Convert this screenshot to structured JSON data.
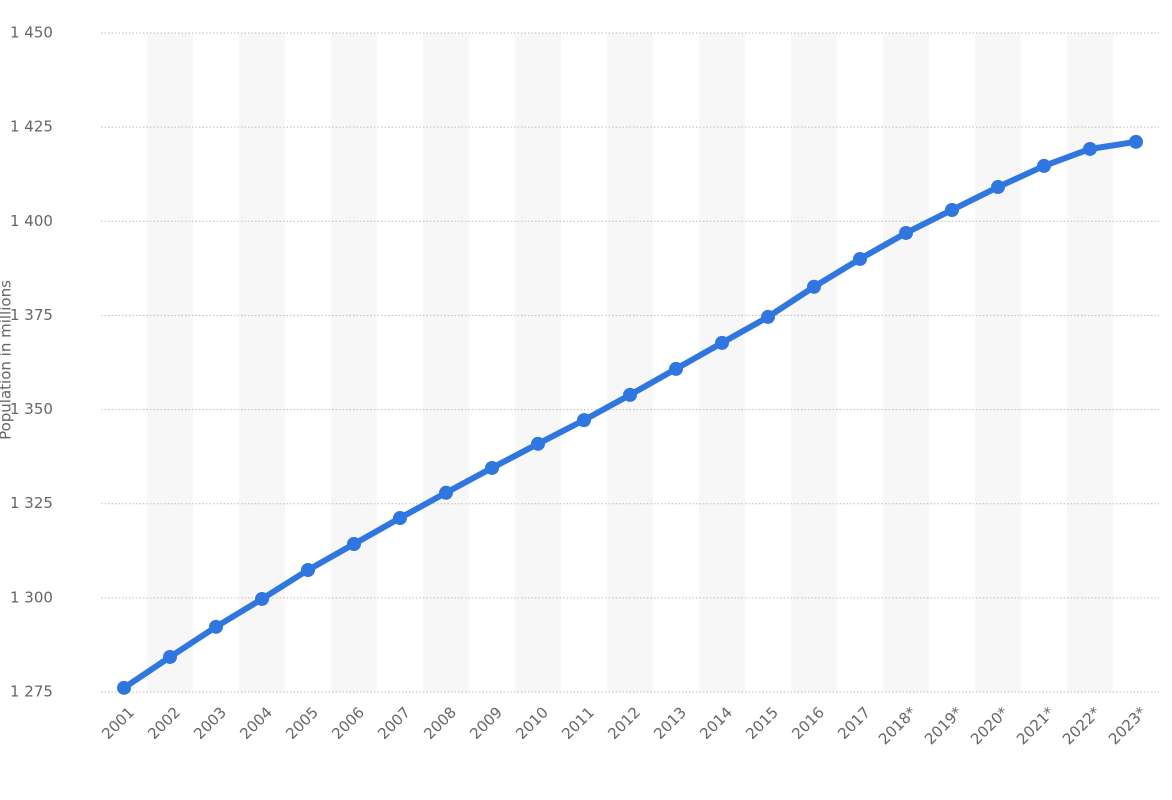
{
  "chart_data": {
    "type": "line",
    "y_label": "Population in millions",
    "categories": [
      "2001",
      "2002",
      "2003",
      "2004",
      "2005",
      "2006",
      "2007",
      "2008",
      "2009",
      "2010",
      "2011",
      "2012",
      "2013",
      "2014",
      "2015",
      "2016",
      "2017",
      "2018*",
      "2019*",
      "2020*",
      "2021*",
      "2022*",
      "2023*"
    ],
    "series": [
      {
        "name": "Population",
        "color": "#2f76e0",
        "values": [
          1276.1,
          1284.3,
          1292.3,
          1299.7,
          1307.4,
          1314.3,
          1321.2,
          1327.9,
          1334.5,
          1340.9,
          1347.2,
          1353.9,
          1360.8,
          1367.7,
          1374.6,
          1382.6,
          1390.0,
          1396.9,
          1403.0,
          1409.1,
          1414.7,
          1419.2,
          1421.1
        ]
      }
    ],
    "ylim": [
      1275,
      1450
    ],
    "yticks": [
      {
        "value": 1275,
        "label": "1 275"
      },
      {
        "value": 1300,
        "label": "1 300"
      },
      {
        "value": 1325,
        "label": "1 325"
      },
      {
        "value": 1350,
        "label": "1 350"
      },
      {
        "value": 1375,
        "label": "1 375"
      },
      {
        "value": 1400,
        "label": "1 400"
      },
      {
        "value": 1425,
        "label": "1 425"
      },
      {
        "value": 1450,
        "label": "1 450"
      }
    ],
    "grid": true
  }
}
